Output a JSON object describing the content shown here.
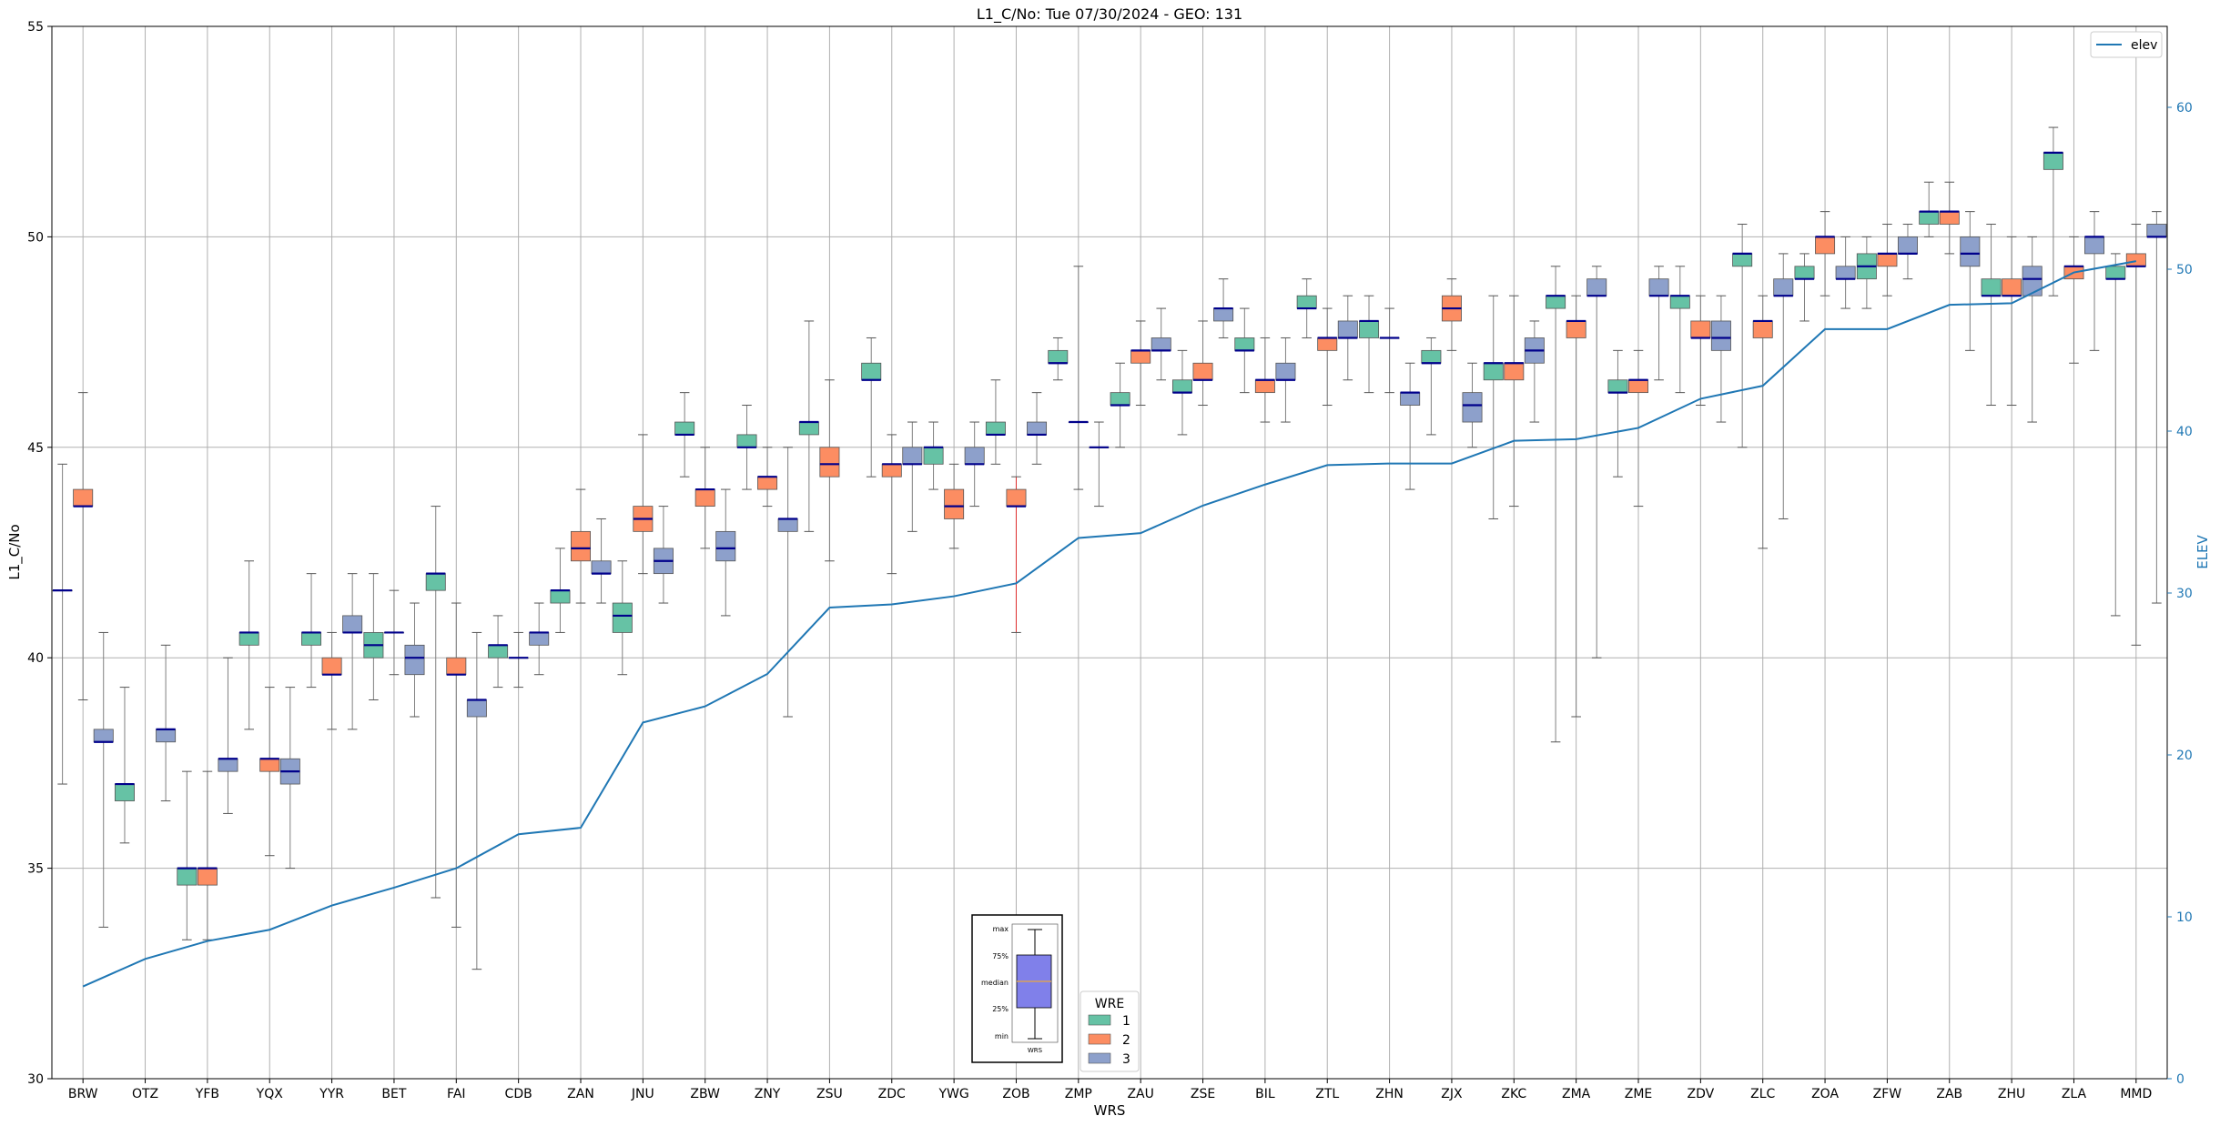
{
  "chart_data": {
    "type": "box",
    "title": "L1_C/No: Tue 07/30/2024 - GEO: 131",
    "xlabel": "WRS",
    "ylabel": "L1_C/No",
    "y2label": "ELEV",
    "ylim": [
      30,
      55
    ],
    "y2lim": [
      0,
      65
    ],
    "yticks": [
      30,
      35,
      40,
      45,
      50,
      55
    ],
    "y2ticks": [
      0,
      10,
      20,
      30,
      40,
      50,
      60
    ],
    "grid": true,
    "colors": {
      "1": "#66c2a5",
      "2": "#fc8d62",
      "3": "#8da0cb",
      "elev": "#1f77b4",
      "median": "#00008b",
      "whisker": "#808080"
    },
    "stations": [
      "BRW",
      "OTZ",
      "YFB",
      "YQX",
      "YYR",
      "BET",
      "FAI",
      "CDB",
      "ZAN",
      "JNU",
      "ZBW",
      "ZNY",
      "ZSU",
      "ZDC",
      "YWG",
      "ZOB",
      "ZMP",
      "ZAU",
      "ZSE",
      "BIL",
      "ZTL",
      "ZHN",
      "ZJX",
      "ZKC",
      "ZMA",
      "ZME",
      "ZDV",
      "ZLC",
      "ZOA",
      "ZFW",
      "ZAB",
      "ZHU",
      "ZLA",
      "MMD"
    ],
    "boxes": [
      {
        "x": "BRW",
        "wre": 1,
        "min": 37.0,
        "q1": 41.6,
        "median": 41.6,
        "q3": 41.6,
        "max": 44.6
      },
      {
        "x": "BRW",
        "wre": 2,
        "min": 39.0,
        "q1": 43.6,
        "median": 43.6,
        "q3": 44.0,
        "max": 46.3
      },
      {
        "x": "BRW",
        "wre": 3,
        "min": 33.6,
        "q1": 38.0,
        "median": 38.0,
        "q3": 38.3,
        "max": 40.6
      },
      {
        "x": "OTZ",
        "wre": 1,
        "min": 35.6,
        "q1": 36.6,
        "median": 37.0,
        "q3": 37.0,
        "max": 39.3
      },
      {
        "x": "OTZ",
        "wre": 3,
        "min": 36.6,
        "q1": 38.0,
        "median": 38.3,
        "q3": 38.3,
        "max": 40.3
      },
      {
        "x": "YFB",
        "wre": 1,
        "min": 33.3,
        "q1": 34.6,
        "median": 35.0,
        "q3": 35.0,
        "max": 37.3
      },
      {
        "x": "YFB",
        "wre": 2,
        "min": 33.3,
        "q1": 34.6,
        "median": 35.0,
        "q3": 35.0,
        "max": 37.3
      },
      {
        "x": "YFB",
        "wre": 3,
        "min": 36.3,
        "q1": 37.3,
        "median": 37.6,
        "q3": 37.6,
        "max": 40.0
      },
      {
        "x": "YQX",
        "wre": 1,
        "min": 38.3,
        "q1": 40.3,
        "median": 40.6,
        "q3": 40.6,
        "max": 42.3
      },
      {
        "x": "YQX",
        "wre": 2,
        "min": 35.3,
        "q1": 37.3,
        "median": 37.6,
        "q3": 37.6,
        "max": 39.3
      },
      {
        "x": "YQX",
        "wre": 3,
        "min": 35.0,
        "q1": 37.0,
        "median": 37.3,
        "q3": 37.6,
        "max": 39.3
      },
      {
        "x": "YYR",
        "wre": 1,
        "min": 39.3,
        "q1": 40.3,
        "median": 40.6,
        "q3": 40.6,
        "max": 42.0
      },
      {
        "x": "YYR",
        "wre": 2,
        "min": 38.3,
        "q1": 39.6,
        "median": 39.6,
        "q3": 40.0,
        "max": 40.6
      },
      {
        "x": "YYR",
        "wre": 3,
        "min": 38.3,
        "q1": 40.6,
        "median": 40.6,
        "q3": 41.0,
        "max": 42.0
      },
      {
        "x": "BET",
        "wre": 1,
        "min": 39.0,
        "q1": 40.0,
        "median": 40.3,
        "q3": 40.6,
        "max": 42.0
      },
      {
        "x": "BET",
        "wre": 2,
        "min": 39.6,
        "q1": 40.6,
        "median": 40.6,
        "q3": 40.6,
        "max": 41.6
      },
      {
        "x": "BET",
        "wre": 3,
        "min": 38.6,
        "q1": 39.6,
        "median": 40.0,
        "q3": 40.3,
        "max": 41.3
      },
      {
        "x": "FAI",
        "wre": 1,
        "min": 34.3,
        "q1": 41.6,
        "median": 42.0,
        "q3": 42.0,
        "max": 43.6
      },
      {
        "x": "FAI",
        "wre": 2,
        "min": 33.6,
        "q1": 39.6,
        "median": 39.6,
        "q3": 40.0,
        "max": 41.3
      },
      {
        "x": "FAI",
        "wre": 3,
        "min": 32.6,
        "q1": 38.6,
        "median": 39.0,
        "q3": 39.0,
        "max": 40.6
      },
      {
        "x": "CDB",
        "wre": 1,
        "min": 39.3,
        "q1": 40.0,
        "median": 40.3,
        "q3": 40.3,
        "max": 41.0
      },
      {
        "x": "CDB",
        "wre": 2,
        "min": 39.3,
        "q1": 40.0,
        "median": 40.0,
        "q3": 40.0,
        "max": 40.6
      },
      {
        "x": "CDB",
        "wre": 3,
        "min": 39.6,
        "q1": 40.3,
        "median": 40.6,
        "q3": 40.6,
        "max": 41.3
      },
      {
        "x": "ZAN",
        "wre": 1,
        "min": 40.6,
        "q1": 41.3,
        "median": 41.6,
        "q3": 41.6,
        "max": 42.6
      },
      {
        "x": "ZAN",
        "wre": 2,
        "min": 41.3,
        "q1": 42.3,
        "median": 42.6,
        "q3": 43.0,
        "max": 44.0
      },
      {
        "x": "ZAN",
        "wre": 3,
        "min": 41.3,
        "q1": 42.0,
        "median": 42.0,
        "q3": 42.3,
        "max": 43.3
      },
      {
        "x": "JNU",
        "wre": 1,
        "min": 39.6,
        "q1": 40.6,
        "median": 41.0,
        "q3": 41.3,
        "max": 42.3
      },
      {
        "x": "JNU",
        "wre": 2,
        "min": 42.0,
        "q1": 43.0,
        "median": 43.3,
        "q3": 43.6,
        "max": 45.3
      },
      {
        "x": "JNU",
        "wre": 3,
        "min": 41.3,
        "q1": 42.0,
        "median": 42.3,
        "q3": 42.6,
        "max": 43.6
      },
      {
        "x": "ZBW",
        "wre": 1,
        "min": 44.3,
        "q1": 45.3,
        "median": 45.3,
        "q3": 45.6,
        "max": 46.3
      },
      {
        "x": "ZBW",
        "wre": 2,
        "min": 42.6,
        "q1": 43.6,
        "median": 44.0,
        "q3": 44.0,
        "max": 45.0
      },
      {
        "x": "ZBW",
        "wre": 3,
        "min": 41.0,
        "q1": 42.3,
        "median": 42.6,
        "q3": 43.0,
        "max": 44.0
      },
      {
        "x": "ZNY",
        "wre": 1,
        "min": 44.0,
        "q1": 45.0,
        "median": 45.0,
        "q3": 45.3,
        "max": 46.0
      },
      {
        "x": "ZNY",
        "wre": 2,
        "min": 43.6,
        "q1": 44.0,
        "median": 44.3,
        "q3": 44.3,
        "max": 45.0
      },
      {
        "x": "ZNY",
        "wre": 3,
        "min": 38.6,
        "q1": 43.0,
        "median": 43.3,
        "q3": 43.3,
        "max": 45.0
      },
      {
        "x": "ZSU",
        "wre": 1,
        "min": 43.0,
        "q1": 45.3,
        "median": 45.6,
        "q3": 45.6,
        "max": 48.0
      },
      {
        "x": "ZSU",
        "wre": 2,
        "min": 42.3,
        "q1": 44.3,
        "median": 44.6,
        "q3": 45.0,
        "max": 46.6
      },
      {
        "x": "ZDC",
        "wre": 1,
        "min": 44.3,
        "q1": 46.6,
        "median": 46.6,
        "q3": 47.0,
        "max": 47.6
      },
      {
        "x": "ZDC",
        "wre": 2,
        "min": 42.0,
        "q1": 44.3,
        "median": 44.6,
        "q3": 44.6,
        "max": 45.3
      },
      {
        "x": "ZDC",
        "wre": 3,
        "min": 43.0,
        "q1": 44.6,
        "median": 44.6,
        "q3": 45.0,
        "max": 45.6
      },
      {
        "x": "YWG",
        "wre": 1,
        "min": 44.0,
        "q1": 44.6,
        "median": 45.0,
        "q3": 45.0,
        "max": 45.6
      },
      {
        "x": "YWG",
        "wre": 2,
        "min": 42.6,
        "q1": 43.3,
        "median": 43.6,
        "q3": 44.0,
        "max": 44.6
      },
      {
        "x": "YWG",
        "wre": 3,
        "min": 43.6,
        "q1": 44.6,
        "median": 44.6,
        "q3": 45.0,
        "max": 45.6
      },
      {
        "x": "ZOB",
        "wre": 1,
        "min": 44.6,
        "q1": 45.3,
        "median": 45.3,
        "q3": 45.6,
        "max": 46.6
      },
      {
        "x": "ZOB",
        "wre": 2,
        "min": 40.6,
        "q1": 43.6,
        "median": 43.6,
        "q3": 44.0,
        "max": 44.3
      },
      {
        "x": "ZOB",
        "wre": 3,
        "min": 44.6,
        "q1": 45.3,
        "median": 45.3,
        "q3": 45.6,
        "max": 46.3
      },
      {
        "x": "ZMP",
        "wre": 1,
        "min": 46.6,
        "q1": 47.0,
        "median": 47.0,
        "q3": 47.3,
        "max": 47.6
      },
      {
        "x": "ZMP",
        "wre": 2,
        "min": 44.0,
        "q1": 45.6,
        "median": 45.6,
        "q3": 45.6,
        "max": 49.3
      },
      {
        "x": "ZMP",
        "wre": 3,
        "min": 43.6,
        "q1": 45.0,
        "median": 45.0,
        "q3": 45.0,
        "max": 45.6
      },
      {
        "x": "ZAU",
        "wre": 1,
        "min": 45.0,
        "q1": 46.0,
        "median": 46.0,
        "q3": 46.3,
        "max": 47.0
      },
      {
        "x": "ZAU",
        "wre": 2,
        "min": 46.0,
        "q1": 47.0,
        "median": 47.3,
        "q3": 47.3,
        "max": 48.0
      },
      {
        "x": "ZAU",
        "wre": 3,
        "min": 46.6,
        "q1": 47.3,
        "median": 47.3,
        "q3": 47.6,
        "max": 48.3
      },
      {
        "x": "ZSE",
        "wre": 1,
        "min": 45.3,
        "q1": 46.3,
        "median": 46.3,
        "q3": 46.6,
        "max": 47.3
      },
      {
        "x": "ZSE",
        "wre": 2,
        "min": 46.0,
        "q1": 46.6,
        "median": 46.6,
        "q3": 47.0,
        "max": 48.0
      },
      {
        "x": "ZSE",
        "wre": 3,
        "min": 47.6,
        "q1": 48.0,
        "median": 48.3,
        "q3": 48.3,
        "max": 49.0
      },
      {
        "x": "BIL",
        "wre": 1,
        "min": 46.3,
        "q1": 47.3,
        "median": 47.3,
        "q3": 47.6,
        "max": 48.3
      },
      {
        "x": "BIL",
        "wre": 2,
        "min": 45.6,
        "q1": 46.3,
        "median": 46.6,
        "q3": 46.6,
        "max": 47.6
      },
      {
        "x": "BIL",
        "wre": 3,
        "min": 45.6,
        "q1": 46.6,
        "median": 46.6,
        "q3": 47.0,
        "max": 47.6
      },
      {
        "x": "ZTL",
        "wre": 1,
        "min": 47.6,
        "q1": 48.3,
        "median": 48.3,
        "q3": 48.6,
        "max": 49.0
      },
      {
        "x": "ZTL",
        "wre": 2,
        "min": 46.0,
        "q1": 47.3,
        "median": 47.6,
        "q3": 47.6,
        "max": 48.3
      },
      {
        "x": "ZTL",
        "wre": 3,
        "min": 46.6,
        "q1": 47.6,
        "median": 47.6,
        "q3": 48.0,
        "max": 48.6
      },
      {
        "x": "ZHN",
        "wre": 1,
        "min": 46.3,
        "q1": 47.6,
        "median": 48.0,
        "q3": 48.0,
        "max": 48.6
      },
      {
        "x": "ZHN",
        "wre": 2,
        "min": 46.3,
        "q1": 47.6,
        "median": 47.6,
        "q3": 47.6,
        "max": 48.3
      },
      {
        "x": "ZHN",
        "wre": 3,
        "min": 44.0,
        "q1": 46.0,
        "median": 46.3,
        "q3": 46.3,
        "max": 47.0
      },
      {
        "x": "ZJX",
        "wre": 1,
        "min": 45.3,
        "q1": 47.0,
        "median": 47.0,
        "q3": 47.3,
        "max": 47.6
      },
      {
        "x": "ZJX",
        "wre": 2,
        "min": 47.3,
        "q1": 48.0,
        "median": 48.3,
        "q3": 48.6,
        "max": 49.0
      },
      {
        "x": "ZJX",
        "wre": 3,
        "min": 45.0,
        "q1": 45.6,
        "median": 46.0,
        "q3": 46.3,
        "max": 47.0
      },
      {
        "x": "ZKC",
        "wre": 1,
        "min": 43.3,
        "q1": 46.6,
        "median": 47.0,
        "q3": 47.0,
        "max": 48.6
      },
      {
        "x": "ZKC",
        "wre": 2,
        "min": 43.6,
        "q1": 46.6,
        "median": 47.0,
        "q3": 47.0,
        "max": 48.6
      },
      {
        "x": "ZKC",
        "wre": 3,
        "min": 45.6,
        "q1": 47.0,
        "median": 47.3,
        "q3": 47.6,
        "max": 48.0
      },
      {
        "x": "ZMA",
        "wre": 1,
        "min": 38.0,
        "q1": 48.3,
        "median": 48.6,
        "q3": 48.6,
        "max": 49.3
      },
      {
        "x": "ZMA",
        "wre": 2,
        "min": 38.6,
        "q1": 47.6,
        "median": 48.0,
        "q3": 48.0,
        "max": 48.6
      },
      {
        "x": "ZMA",
        "wre": 3,
        "min": 40.0,
        "q1": 48.6,
        "median": 48.6,
        "q3": 49.0,
        "max": 49.3
      },
      {
        "x": "ZME",
        "wre": 1,
        "min": 44.3,
        "q1": 46.3,
        "median": 46.3,
        "q3": 46.6,
        "max": 47.3
      },
      {
        "x": "ZME",
        "wre": 2,
        "min": 43.6,
        "q1": 46.3,
        "median": 46.6,
        "q3": 46.6,
        "max": 47.3
      },
      {
        "x": "ZME",
        "wre": 3,
        "min": 46.6,
        "q1": 48.6,
        "median": 48.6,
        "q3": 49.0,
        "max": 49.3
      },
      {
        "x": "ZDV",
        "wre": 1,
        "min": 46.3,
        "q1": 48.3,
        "median": 48.6,
        "q3": 48.6,
        "max": 49.3
      },
      {
        "x": "ZDV",
        "wre": 2,
        "min": 46.0,
        "q1": 47.6,
        "median": 47.6,
        "q3": 48.0,
        "max": 48.6
      },
      {
        "x": "ZDV",
        "wre": 3,
        "min": 45.6,
        "q1": 47.3,
        "median": 47.6,
        "q3": 48.0,
        "max": 48.6
      },
      {
        "x": "ZLC",
        "wre": 1,
        "min": 45.0,
        "q1": 49.3,
        "median": 49.6,
        "q3": 49.6,
        "max": 50.3
      },
      {
        "x": "ZLC",
        "wre": 2,
        "min": 42.6,
        "q1": 47.6,
        "median": 48.0,
        "q3": 48.0,
        "max": 48.6
      },
      {
        "x": "ZLC",
        "wre": 3,
        "min": 43.3,
        "q1": 48.6,
        "median": 48.6,
        "q3": 49.0,
        "max": 49.6
      },
      {
        "x": "ZOA",
        "wre": 1,
        "min": 48.0,
        "q1": 49.0,
        "median": 49.0,
        "q3": 49.3,
        "max": 49.6
      },
      {
        "x": "ZOA",
        "wre": 2,
        "min": 48.6,
        "q1": 49.6,
        "median": 50.0,
        "q3": 50.0,
        "max": 50.6
      },
      {
        "x": "ZOA",
        "wre": 3,
        "min": 48.3,
        "q1": 49.0,
        "median": 49.0,
        "q3": 49.3,
        "max": 50.0
      },
      {
        "x": "ZFW",
        "wre": 1,
        "min": 48.3,
        "q1": 49.0,
        "median": 49.3,
        "q3": 49.6,
        "max": 50.0
      },
      {
        "x": "ZFW",
        "wre": 2,
        "min": 48.6,
        "q1": 49.3,
        "median": 49.6,
        "q3": 49.6,
        "max": 50.3
      },
      {
        "x": "ZFW",
        "wre": 3,
        "min": 49.0,
        "q1": 49.6,
        "median": 49.6,
        "q3": 50.0,
        "max": 50.3
      },
      {
        "x": "ZAB",
        "wre": 1,
        "min": 50.0,
        "q1": 50.3,
        "median": 50.6,
        "q3": 50.6,
        "max": 51.3
      },
      {
        "x": "ZAB",
        "wre": 2,
        "min": 49.6,
        "q1": 50.3,
        "median": 50.6,
        "q3": 50.6,
        "max": 51.3
      },
      {
        "x": "ZAB",
        "wre": 3,
        "min": 47.3,
        "q1": 49.3,
        "median": 49.6,
        "q3": 50.0,
        "max": 50.6
      },
      {
        "x": "ZHU",
        "wre": 1,
        "min": 46.0,
        "q1": 48.6,
        "median": 48.6,
        "q3": 49.0,
        "max": 50.3
      },
      {
        "x": "ZHU",
        "wre": 2,
        "min": 46.0,
        "q1": 48.6,
        "median": 48.6,
        "q3": 49.0,
        "max": 50.0
      },
      {
        "x": "ZHU",
        "wre": 3,
        "min": 45.6,
        "q1": 48.6,
        "median": 49.0,
        "q3": 49.3,
        "max": 50.0
      },
      {
        "x": "ZLA",
        "wre": 1,
        "min": 48.6,
        "q1": 51.6,
        "median": 52.0,
        "q3": 52.0,
        "max": 52.6
      },
      {
        "x": "ZLA",
        "wre": 2,
        "min": 47.0,
        "q1": 49.0,
        "median": 49.3,
        "q3": 49.3,
        "max": 50.0
      },
      {
        "x": "ZLA",
        "wre": 3,
        "min": 47.3,
        "q1": 49.6,
        "median": 50.0,
        "q3": 50.0,
        "max": 50.6
      },
      {
        "x": "MMD",
        "wre": 1,
        "min": 41.0,
        "q1": 49.0,
        "median": 49.0,
        "q3": 49.3,
        "max": 49.6
      },
      {
        "x": "MMD",
        "wre": 2,
        "min": 40.3,
        "q1": 49.3,
        "median": 49.3,
        "q3": 49.6,
        "max": 50.3
      },
      {
        "x": "MMD",
        "wre": 3,
        "min": 41.3,
        "q1": 50.0,
        "median": 50.0,
        "q3": 50.3,
        "max": 50.6
      }
    ],
    "elev_series": {
      "name": "elev",
      "x": [
        "BRW",
        "OTZ",
        "YFB",
        "YQX",
        "YYR",
        "BET",
        "FAI",
        "CDB",
        "ZAN",
        "JNU",
        "ZBW",
        "ZNY",
        "ZSU",
        "ZDC",
        "YWG",
        "ZOB",
        "ZMP",
        "ZAU",
        "ZSE",
        "BIL",
        "ZTL",
        "ZHN",
        "ZJX",
        "ZKC",
        "ZMA",
        "ZME",
        "ZDV",
        "ZLC",
        "ZOA",
        "ZFW",
        "ZAB",
        "ZHU",
        "ZLA",
        "MMD"
      ],
      "values": [
        5.7,
        7.4,
        8.5,
        9.2,
        10.7,
        11.8,
        13.0,
        15.1,
        15.5,
        22.0,
        23.0,
        25.0,
        29.1,
        29.3,
        29.8,
        30.6,
        33.4,
        33.7,
        35.4,
        36.7,
        37.9,
        38.0,
        38.0,
        39.4,
        39.5,
        40.2,
        42.0,
        42.8,
        46.3,
        46.3,
        47.8,
        47.9,
        49.8,
        50.5
      ]
    },
    "legend": {
      "title": "WRE",
      "entries": [
        "1",
        "2",
        "3"
      ],
      "placement": "bottom-center"
    },
    "legend2": {
      "entries": [
        "elev"
      ],
      "placement": "top-right"
    },
    "explainer_labels": [
      "max",
      "75%",
      "median",
      "25%",
      "min",
      "WRS"
    ]
  }
}
